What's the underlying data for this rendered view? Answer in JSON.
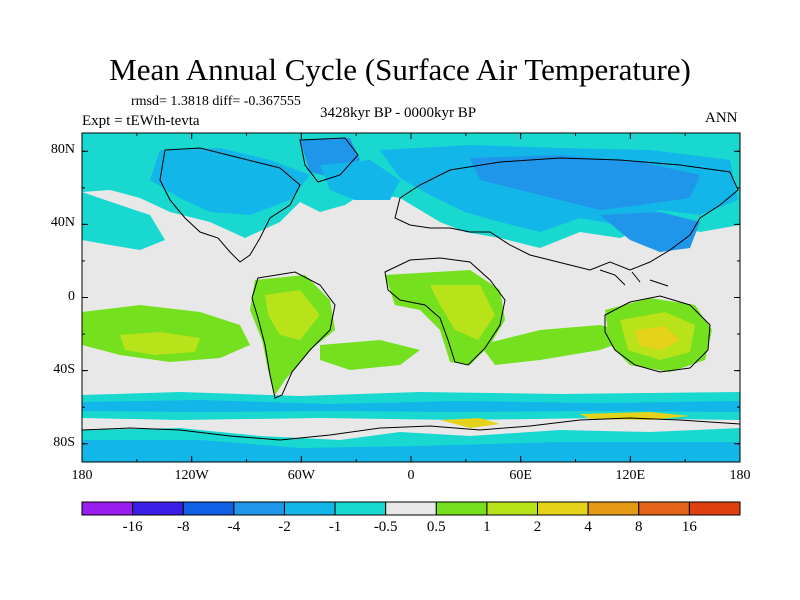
{
  "header": {
    "title": "Mean Annual Cycle (Surface Air Temperature)",
    "stats": "rmsd= 1.3818 diff= -0.367555",
    "experiment": "Expt = tEWth-tevta",
    "period": "3428kyr BP - 0000kyr BP",
    "season": "ANN"
  },
  "map": {
    "lat_ticks": [
      "80N",
      "40N",
      "0",
      "40S",
      "80S"
    ],
    "lon_ticks": [
      "180",
      "120W",
      "60W",
      "0",
      "60E",
      "120E",
      "180"
    ],
    "lat_values": [
      80,
      40,
      0,
      -40,
      -80
    ],
    "lon_values": [
      -180,
      -120,
      -60,
      0,
      60,
      120,
      180
    ]
  },
  "colorbar": {
    "labels": [
      "-16",
      "-8",
      "-4",
      "-2",
      "-1",
      "-0.5",
      "0.5",
      "1",
      "2",
      "4",
      "8",
      "16"
    ],
    "colors": [
      "#9a1df0",
      "#3b1ee6",
      "#1060e6",
      "#1f96ea",
      "#12b6e8",
      "#19d8d0",
      "#e8e8e8",
      "#74e01e",
      "#b8e21a",
      "#e5d21a",
      "#e59a16",
      "#e5641a",
      "#e0400f"
    ]
  },
  "colors": {
    "neutral": "#e8e8e8",
    "cool_light": "#19d8d0",
    "cool_mid": "#12b6e8",
    "cool_strong": "#1f96ea",
    "cool_deep": "#1060e6",
    "warm_light": "#74e01e",
    "warm_mid": "#b8e21a",
    "warm_strong": "#e5d21a",
    "warm_deep": "#e59a16"
  }
}
